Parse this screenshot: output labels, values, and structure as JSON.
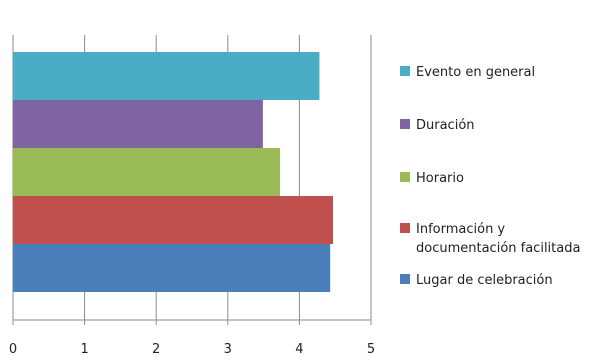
{
  "chart_data": {
    "type": "bar",
    "orientation": "horizontal",
    "categories": [
      "Lugar de celebración",
      "Información y documentación facilitada",
      "Horario",
      "Duración",
      "Evento en general"
    ],
    "values": [
      4.43,
      4.47,
      3.73,
      3.49,
      4.28
    ],
    "colors": [
      "#4A7EBB",
      "#C0504D",
      "#9BBB59",
      "#8064A2",
      "#4BACC6"
    ],
    "legend": {
      "placement": "right",
      "entries": [
        {
          "label": "Evento en general",
          "color": "#4BACC6"
        },
        {
          "label": "Duración",
          "color": "#8064A2"
        },
        {
          "label": "Horario",
          "color": "#9BBB59"
        },
        {
          "label": "Información y documentación facilitada",
          "label_lines": [
            "Información y",
            "documentación facilitada"
          ],
          "color": "#C0504D"
        },
        {
          "label": "Lugar de celebración",
          "color": "#4A7EBB"
        }
      ]
    },
    "xlim": [
      0,
      5
    ],
    "xticks": [
      "0",
      "1",
      "2",
      "3",
      "4",
      "5"
    ],
    "grid": "vertical",
    "title": "",
    "xlabel": "",
    "ylabel": ""
  }
}
